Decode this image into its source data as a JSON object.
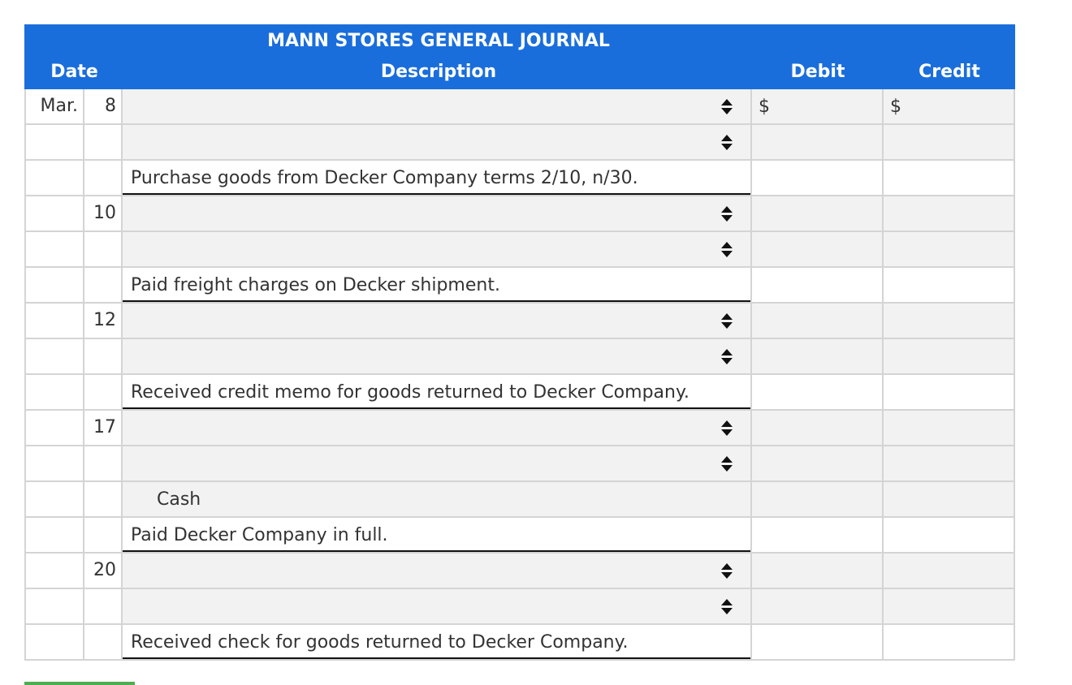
{
  "journal": {
    "title": "MANN STORES GENERAL JOURNAL",
    "headers": {
      "date": "Date",
      "description": "Description",
      "debit": "Debit",
      "credit": "Credit"
    },
    "currency_symbol": "$",
    "rows": [
      {
        "month": "Mar.",
        "day": "8",
        "kind": "select",
        "debit_symbol": true,
        "credit_symbol": true
      },
      {
        "month": "",
        "day": "",
        "kind": "select"
      },
      {
        "month": "",
        "day": "",
        "kind": "note",
        "text": "Purchase goods from Decker Company terms 2/10, n/30."
      },
      {
        "month": "",
        "day": "10",
        "kind": "select"
      },
      {
        "month": "",
        "day": "",
        "kind": "select"
      },
      {
        "month": "",
        "day": "",
        "kind": "note",
        "text": "Paid freight charges on Decker shipment."
      },
      {
        "month": "",
        "day": "12",
        "kind": "select"
      },
      {
        "month": "",
        "day": "",
        "kind": "select"
      },
      {
        "month": "",
        "day": "",
        "kind": "note",
        "text": "Received credit memo for goods returned to Decker Company."
      },
      {
        "month": "",
        "day": "17",
        "kind": "select"
      },
      {
        "month": "",
        "day": "",
        "kind": "select"
      },
      {
        "month": "",
        "day": "",
        "kind": "static",
        "text": "Cash"
      },
      {
        "month": "",
        "day": "",
        "kind": "note",
        "text": "Paid Decker Company in full."
      },
      {
        "month": "",
        "day": "20",
        "kind": "select"
      },
      {
        "month": "",
        "day": "",
        "kind": "select"
      },
      {
        "month": "",
        "day": "",
        "kind": "note",
        "text": "Received check for goods returned to Decker Company."
      }
    ]
  },
  "colors": {
    "header_bg": "#1a6edb",
    "input_bg": "#f2f2f2",
    "progress": "#4cae50"
  },
  "icons": {
    "dropdown": "up-down-arrow-icon"
  }
}
